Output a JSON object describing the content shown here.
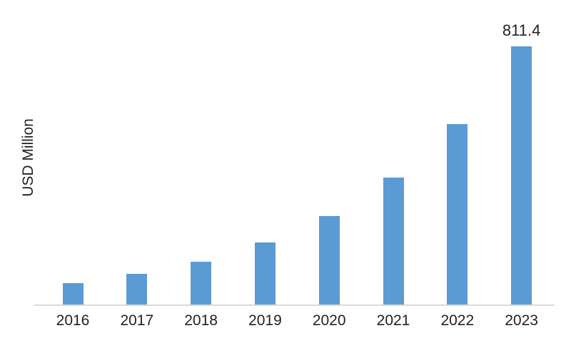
{
  "chart_data": {
    "type": "bar",
    "title": "",
    "xlabel": "",
    "ylabel": "USD Million",
    "categories": [
      "2016",
      "2017",
      "2018",
      "2019",
      "2020",
      "2021",
      "2022",
      "2023"
    ],
    "values": [
      68,
      97,
      134,
      194,
      279,
      398,
      568,
      811.4
    ],
    "data_labels": [
      null,
      null,
      null,
      null,
      null,
      null,
      null,
      "811.4"
    ],
    "ylim": [
      0,
      880
    ],
    "grid": false,
    "legend": false,
    "bar_color": "#5B9BD5",
    "axis_line_color": "#D9D9D9",
    "text_color": "#222222"
  }
}
